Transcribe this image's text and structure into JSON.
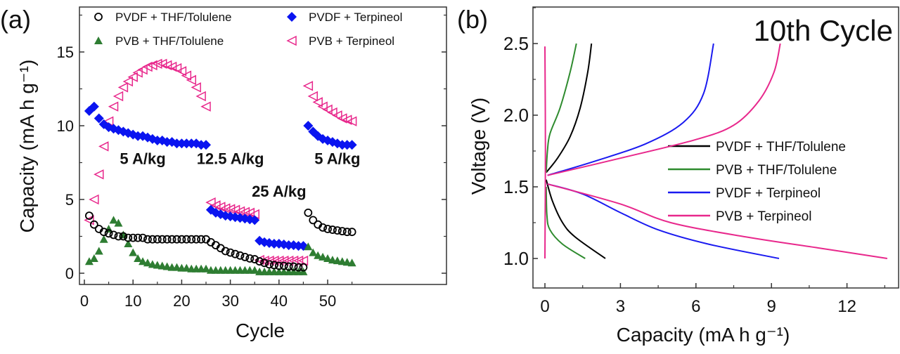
{
  "chart_data": [
    {
      "panel_label": "(a)",
      "type": "scatter",
      "xlabel": "Cycle",
      "ylabel": "Capacity (mA h g⁻¹)",
      "xlim": [
        0,
        57
      ],
      "ylim": [
        -1,
        17.5
      ],
      "xticks": [
        "0",
        "10",
        "20",
        "30",
        "40",
        "50"
      ],
      "yticks": [
        "0",
        "5",
        "10",
        "15"
      ],
      "legend_placement": "top",
      "annotations": [
        {
          "text": "5 A/kg",
          "x": 12,
          "y": 7.4
        },
        {
          "text": "12.5 A/kg",
          "x": 30,
          "y": 7.4
        },
        {
          "text": "25 A/kg",
          "x": 40,
          "y": 5.2
        },
        {
          "text": "5 A/kg",
          "x": 52,
          "y": 7.4
        }
      ],
      "series": [
        {
          "name": "PVDF + THF/Tolulene",
          "marker": "open-circle",
          "color": "#000000",
          "values": [
            3.9,
            3.3,
            3.0,
            2.8,
            2.7,
            2.6,
            2.5,
            2.5,
            2.4,
            2.4,
            2.4,
            2.4,
            2.3,
            2.3,
            2.3,
            2.3,
            2.3,
            2.3,
            2.3,
            2.3,
            2.3,
            2.3,
            2.3,
            2.3,
            2.3,
            2.1,
            1.9,
            1.7,
            1.5,
            1.4,
            1.3,
            1.2,
            1.1,
            1.0,
            0.95,
            0.8,
            0.7,
            0.6,
            0.55,
            0.5,
            0.5,
            0.45,
            0.45,
            0.4,
            0.4,
            4.1,
            3.6,
            3.3,
            3.1,
            3.0,
            2.95,
            2.9,
            2.85,
            2.8,
            2.8
          ]
        },
        {
          "name": "PVB + THF/Tolulene",
          "marker": "filled-triangle",
          "color": "#2e7d32",
          "values": [
            0.8,
            1.0,
            1.5,
            2.3,
            3.0,
            3.6,
            3.4,
            2.6,
            2.0,
            1.4,
            1.0,
            0.8,
            0.7,
            0.6,
            0.55,
            0.5,
            0.45,
            0.4,
            0.4,
            0.35,
            0.35,
            0.3,
            0.3,
            0.3,
            0.3,
            0.2,
            0.2,
            0.2,
            0.2,
            0.2,
            0.2,
            0.2,
            0.2,
            0.2,
            0.2,
            0.1,
            0.1,
            0.1,
            0.1,
            0.1,
            0.1,
            0.1,
            0.1,
            0.1,
            0.1,
            1.8,
            1.4,
            1.2,
            1.1,
            1.0,
            0.9,
            0.85,
            0.8,
            0.75,
            0.7
          ]
        },
        {
          "name": "PVDF + Terpineol",
          "marker": "filled-diamond",
          "color": "#0a14f0",
          "values": [
            11.0,
            11.3,
            10.5,
            10.1,
            9.9,
            9.8,
            9.7,
            9.6,
            9.5,
            9.4,
            9.3,
            9.3,
            9.2,
            9.1,
            9.0,
            9.0,
            8.9,
            8.9,
            8.8,
            8.8,
            8.8,
            8.8,
            8.8,
            8.7,
            8.7,
            4.3,
            4.1,
            4.0,
            3.9,
            3.85,
            3.8,
            3.75,
            3.7,
            3.65,
            3.6,
            2.2,
            2.1,
            2.05,
            2.0,
            2.0,
            1.95,
            1.9,
            1.9,
            1.85,
            1.85,
            10.0,
            9.6,
            9.3,
            9.1,
            9.0,
            8.9,
            8.8,
            8.7,
            8.7,
            8.7
          ]
        },
        {
          "name": "PVB + Terpineol",
          "marker": "open-left-triangle",
          "color": "#e8288c",
          "values": [
            3.6,
            5.0,
            6.7,
            8.6,
            10.3,
            11.3,
            12.0,
            12.6,
            13.0,
            13.3,
            13.6,
            13.8,
            14.0,
            14.1,
            14.2,
            14.2,
            14.1,
            14.0,
            13.9,
            13.7,
            13.4,
            13.1,
            12.6,
            12.0,
            11.3,
            4.8,
            4.6,
            4.5,
            4.4,
            4.35,
            4.3,
            4.2,
            4.15,
            4.1,
            4.0,
            0.9,
            0.85,
            0.85,
            0.85,
            0.85,
            0.85,
            0.85,
            0.85,
            0.85,
            0.85,
            12.7,
            12.0,
            11.6,
            11.3,
            11.1,
            10.9,
            10.7,
            10.5,
            10.4,
            10.3
          ]
        }
      ]
    },
    {
      "panel_label": "(b)",
      "type": "line",
      "title": "10th Cycle",
      "xlabel": "Capacity (mA h g⁻¹)",
      "ylabel": "Voltage (V)",
      "xlim": [
        -0.8,
        14
      ],
      "ylim": [
        0.8,
        2.75
      ],
      "xticks": [
        "0",
        "3",
        "6",
        "9",
        "12"
      ],
      "yticks": [
        "1.0",
        "1.5",
        "2.0",
        "2.5"
      ],
      "legend_placement": "center-right",
      "series": [
        {
          "name": "PVDF + THF/Tolulene",
          "color": "#000000",
          "charge": [
            [
              0.05,
              1.6
            ],
            [
              0.5,
              1.7
            ],
            [
              1.0,
              1.85
            ],
            [
              1.4,
              2.05
            ],
            [
              1.7,
              2.3
            ],
            [
              1.85,
              2.5
            ]
          ],
          "discharge": [
            [
              0.05,
              1.55
            ],
            [
              0.3,
              1.4
            ],
            [
              0.7,
              1.25
            ],
            [
              1.2,
              1.15
            ],
            [
              2.4,
              1.0
            ]
          ]
        },
        {
          "name": "PVB + THF/Tolulene",
          "color": "#2e8b2e",
          "charge": [
            [
              0.05,
              1.6
            ],
            [
              0.1,
              1.75
            ],
            [
              0.2,
              1.87
            ],
            [
              0.6,
              2.05
            ],
            [
              1.0,
              2.3
            ],
            [
              1.25,
              2.5
            ]
          ],
          "discharge": [
            [
              0.05,
              1.5
            ],
            [
              0.08,
              1.3
            ],
            [
              0.2,
              1.2
            ],
            [
              0.7,
              1.1
            ],
            [
              1.6,
              1.0
            ]
          ]
        },
        {
          "name": "PVDF + Terpineol",
          "color": "#1a1af0",
          "charge": [
            [
              0.1,
              1.58
            ],
            [
              2,
              1.68
            ],
            [
              4,
              1.8
            ],
            [
              5.5,
              1.95
            ],
            [
              6.3,
              2.15
            ],
            [
              6.7,
              2.5
            ]
          ],
          "discharge": [
            [
              0.1,
              1.52
            ],
            [
              1.5,
              1.45
            ],
            [
              3,
              1.32
            ],
            [
              4.5,
              1.2
            ],
            [
              6.5,
              1.1
            ],
            [
              9.3,
              1.0
            ]
          ]
        },
        {
          "name": "PVB + Terpineol",
          "color": "#e8288c",
          "charge": [
            [
              0.1,
              1.58
            ],
            [
              3,
              1.7
            ],
            [
              6,
              1.83
            ],
            [
              7.5,
              1.93
            ],
            [
              8.5,
              2.1
            ],
            [
              9.1,
              2.3
            ],
            [
              9.35,
              2.5
            ]
          ],
          "discharge": [
            [
              0.1,
              1.52
            ],
            [
              3,
              1.38
            ],
            [
              5,
              1.25
            ],
            [
              8,
              1.15
            ],
            [
              11,
              1.07
            ],
            [
              13.6,
              1.0
            ]
          ],
          "extra": [
            [
              0,
              1.0
            ],
            [
              0.02,
              1.75
            ],
            [
              0,
              2.48
            ]
          ]
        }
      ]
    }
  ]
}
